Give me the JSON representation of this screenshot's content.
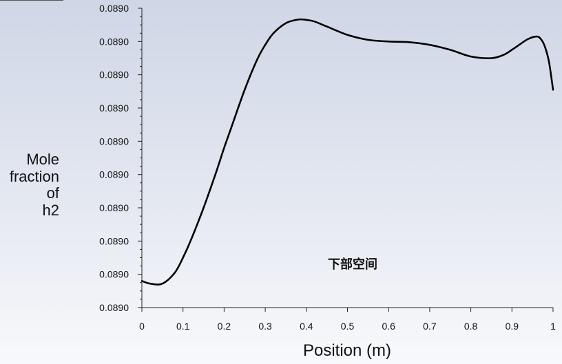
{
  "chart_data": {
    "type": "line",
    "title": "",
    "xlabel": "Position (m)",
    "ylabel": [
      "Mole",
      "fraction",
      "of",
      "h2"
    ],
    "xlim": [
      0,
      1
    ],
    "ylim": [
      0,
      9
    ],
    "x_ticks": [
      "0",
      "0.1",
      "0.2",
      "0.3",
      "0.4",
      "0.5",
      "0.6",
      "0.7",
      "0.8",
      "0.9",
      "1"
    ],
    "y_ticks": [
      "0.0890",
      "0.0890",
      "0.0890",
      "0.0890",
      "0.0890",
      "0.0890",
      "0.0890",
      "0.0890",
      "0.0890",
      "0.0890"
    ],
    "annotation": "下部空间",
    "grid": false,
    "series": [
      {
        "x": [
          0,
          0.02,
          0.05,
          0.08,
          0.1,
          0.12,
          0.15,
          0.18,
          0.2,
          0.22,
          0.25,
          0.28,
          0.3,
          0.32,
          0.35,
          0.38,
          0.4,
          0.42,
          0.45,
          0.5,
          0.55,
          0.6,
          0.65,
          0.7,
          0.75,
          0.8,
          0.85,
          0.88,
          0.9,
          0.92,
          0.94,
          0.96,
          0.97,
          0.98,
          0.99,
          1.0
        ],
        "y": [
          0.8,
          0.72,
          0.72,
          1.05,
          1.5,
          2.05,
          3.0,
          4.05,
          4.8,
          5.5,
          6.55,
          7.45,
          7.9,
          8.25,
          8.55,
          8.66,
          8.65,
          8.6,
          8.45,
          8.2,
          8.05,
          8.0,
          7.98,
          7.9,
          7.75,
          7.55,
          7.5,
          7.6,
          7.75,
          7.92,
          8.08,
          8.15,
          8.08,
          7.85,
          7.4,
          6.55
        ]
      }
    ]
  }
}
